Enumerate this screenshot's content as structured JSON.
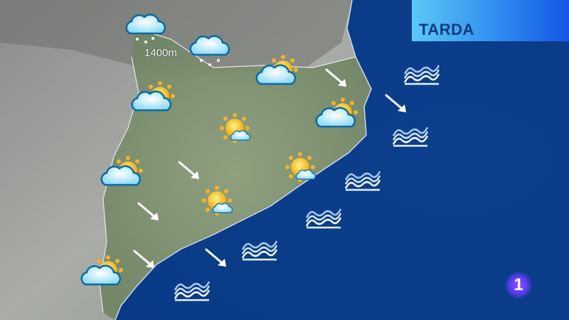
{
  "header": {
    "title": "TARDA"
  },
  "map": {
    "altitude_label": "1400m",
    "colors": {
      "sea": "#0b3f8c",
      "land_green": "#7f9470",
      "land_grey": "#a7aaa6",
      "title_gradient_start": "#5cc8f5",
      "title_gradient_end": "#1456e6",
      "title_text": "#0b3c80"
    },
    "icons": {
      "snow": [
        "snow-cloud-icon",
        "snow-cloud-icon"
      ],
      "partly_cloudy": [
        "sun-behind-cloud-icon",
        "sun-behind-cloud-icon",
        "sun-behind-cloud-icon",
        "sun-behind-cloud-icon",
        "sun-behind-cloud-icon"
      ],
      "mostly_sunny": [
        "sun-small-cloud-icon",
        "sun-small-cloud-icon",
        "sun-small-cloud-icon"
      ],
      "wind": [
        "wind-arrow-se-icon",
        "wind-arrow-se-icon",
        "wind-arrow-se-icon",
        "wind-arrow-se-icon",
        "wind-arrow-se-icon",
        "wind-arrow-se-icon"
      ],
      "sea_state": [
        "waves-icon",
        "waves-icon",
        "waves-icon",
        "waves-icon",
        "waves-icon",
        "waves-icon"
      ]
    }
  },
  "logo": {
    "text": "1"
  }
}
